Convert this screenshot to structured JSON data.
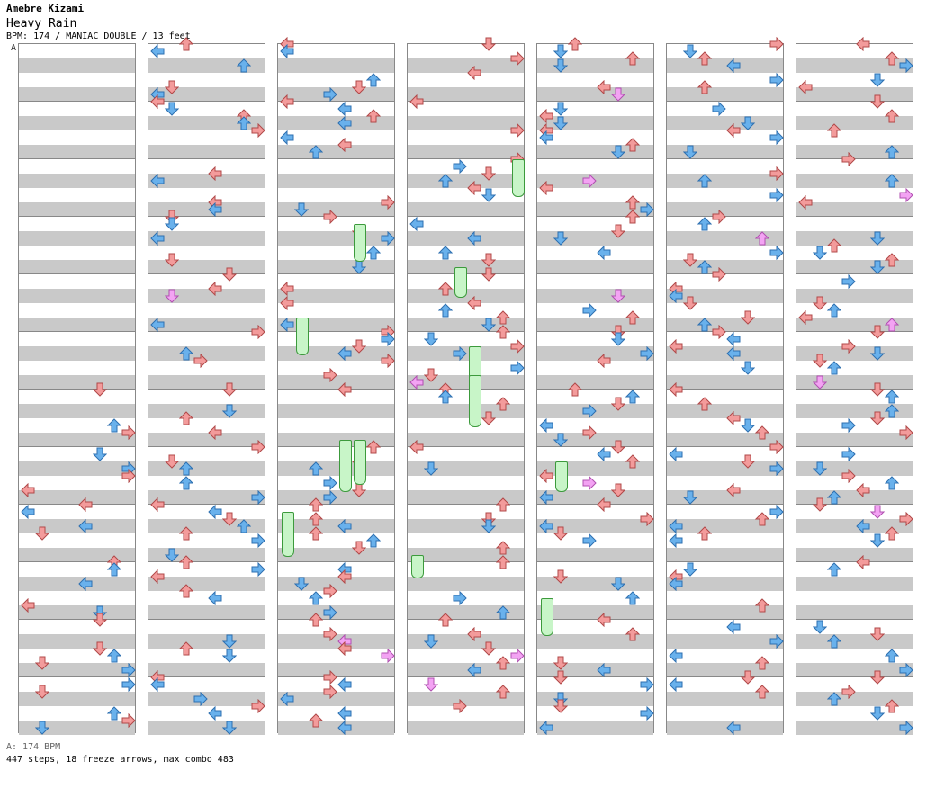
{
  "chart": {
    "artist": "Amebre Kizami",
    "title": "Heavy Rain",
    "meta_line": "BPM: 174 / MANIAC DOUBLE / 13 feet",
    "segment_marker": "A",
    "bpm_note": "A: 174 BPM",
    "summary": "447 steps, 18 freeze arrows, max combo 483"
  },
  "colors": {
    "quarter_note": "#f39b9b",
    "eighth_note": "#69b1ec",
    "sixteenth_note": "#f3a3f3",
    "freeze": "#c8f5c8",
    "band": "#c9c9c9",
    "border": "#888888"
  }
}
